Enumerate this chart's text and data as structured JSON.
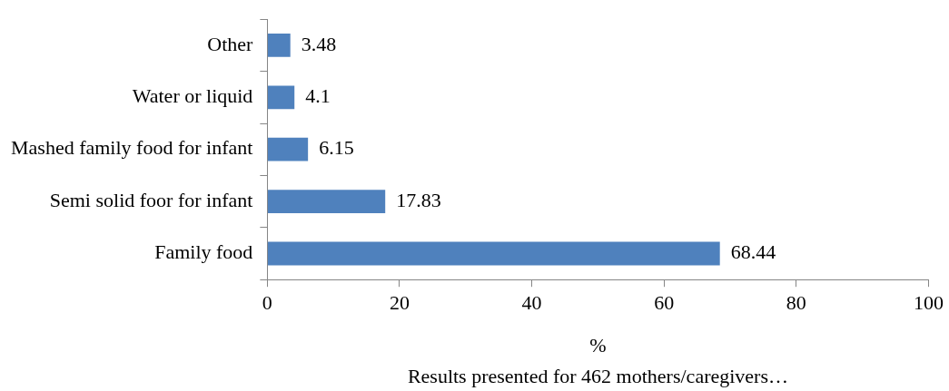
{
  "chart_data": {
    "type": "bar",
    "orientation": "horizontal",
    "categories": [
      "Other",
      "Water or liquid",
      "Mashed family food for infant",
      "Semi solid foor for infant",
      "Family food"
    ],
    "values": [
      3.48,
      4.1,
      6.15,
      17.83,
      68.44
    ],
    "color": "#4f81bd",
    "xlim": [
      0,
      100
    ],
    "xticks": [
      0,
      20,
      40,
      60,
      80,
      100
    ],
    "xlabel": "%",
    "annotations": [
      "Results presented for 462 mothers/caregivers…"
    ],
    "data_labels": true,
    "grid": false,
    "legend": false
  }
}
